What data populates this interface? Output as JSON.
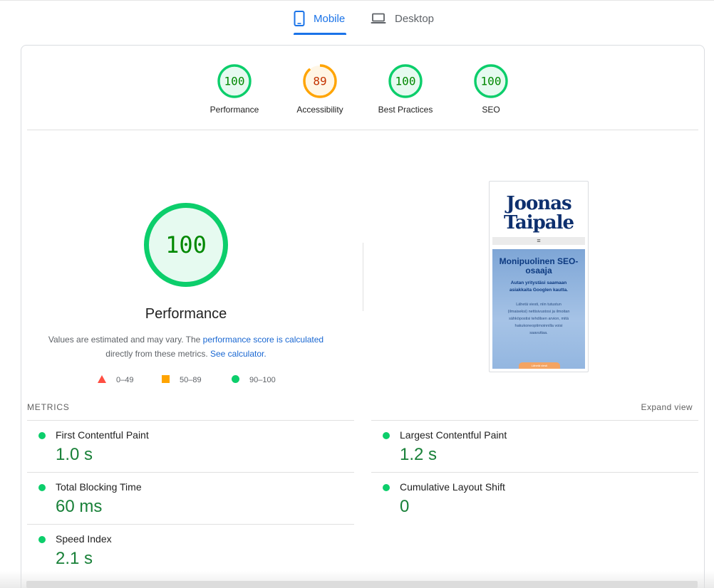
{
  "tabs": [
    {
      "label": "Mobile",
      "icon": "smartphone-icon",
      "active": true
    },
    {
      "label": "Desktop",
      "icon": "laptop-icon",
      "active": false
    }
  ],
  "colors": {
    "pass": "#0cce6b",
    "pass_text": "#008800",
    "average": "#ffa400",
    "average_text": "#c33300",
    "fail": "#ff4e42",
    "accent": "#1a73e8",
    "metric_value": "#188038"
  },
  "categories": [
    {
      "label": "Performance",
      "score": "100",
      "fraction": 1.0,
      "status": "pass"
    },
    {
      "label": "Accessibility",
      "score": "89",
      "fraction": 0.89,
      "status": "average"
    },
    {
      "label": "Best Practices",
      "score": "100",
      "fraction": 1.0,
      "status": "pass"
    },
    {
      "label": "SEO",
      "score": "100",
      "fraction": 1.0,
      "status": "pass"
    }
  ],
  "summary": {
    "score": "100",
    "fraction": 1.0,
    "title": "Performance",
    "desc_prefix": "Values are estimated and may vary. The ",
    "desc_link": "performance score is calculated",
    "desc_middle": " directly from these metrics. ",
    "calc_link": "See calculator."
  },
  "legend": [
    {
      "shape": "triangle",
      "range": "0–49"
    },
    {
      "shape": "square",
      "range": "50–89"
    },
    {
      "shape": "circle",
      "range": "90–100"
    }
  ],
  "thumbnail": {
    "logo_line1": "Joonas",
    "logo_line2": "Taipale",
    "menu": "≡",
    "hero_title": "Monipuolinen SEO-osaaja",
    "hero_sub": "Autan yritystäsi saamaan asiakkaita Googlen kautta.",
    "hero_body": "Lähetä viesti, niin tutustun (ilmaiseksi) nettisivustosi ja ilmoitan sähköpostisi tehdilsen arvion, mitä hakukoneoptimoinnilla voisi saavuttaa.",
    "button": "Lähetä viesti"
  },
  "metrics": {
    "title": "METRICS",
    "expand": "Expand view",
    "items": [
      {
        "label": "First Contentful Paint",
        "value": "1.0 s"
      },
      {
        "label": "Largest Contentful Paint",
        "value": "1.2 s"
      },
      {
        "label": "Total Blocking Time",
        "value": "60 ms"
      },
      {
        "label": "Cumulative Layout Shift",
        "value": "0"
      },
      {
        "label": "Speed Index",
        "value": "2.1 s"
      }
    ]
  }
}
